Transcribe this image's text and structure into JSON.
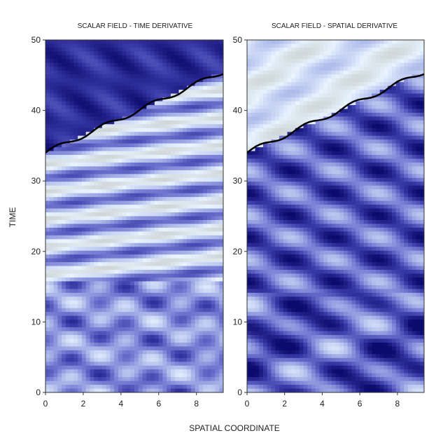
{
  "chart_data": [
    {
      "type": "heatmap",
      "title": "SCALAR FIELD - TIME DERIVATIVE",
      "xlim": [
        0,
        9.42
      ],
      "ylim": [
        0,
        50
      ],
      "x_ticks": [
        "0",
        "2",
        "4",
        "6",
        "8"
      ],
      "y_ticks": [
        "0",
        "10",
        "20",
        "30",
        "40",
        "50"
      ],
      "boundary_front": {
        "x": [
          0,
          9.42
        ],
        "t": [
          34,
          45.5
        ]
      },
      "colormap": [
        "#0b0b6e",
        "#3a3aa8",
        "#7a80d6",
        "#b8c4ee",
        "#e8f4ff",
        "#cfd6d8"
      ]
    },
    {
      "type": "heatmap",
      "title": "SCALAR FIELD - SPATIAL DERIVATIVE",
      "xlim": [
        0,
        9.42
      ],
      "ylim": [
        0,
        50
      ],
      "x_ticks": [
        "0",
        "2",
        "4",
        "6",
        "8"
      ],
      "y_ticks": [
        "0",
        "10",
        "20",
        "30",
        "40",
        "50"
      ],
      "boundary_front": {
        "x": [
          0,
          9.42
        ],
        "t": [
          34,
          45.5
        ]
      },
      "colormap": [
        "#0b0b6e",
        "#3a3aa8",
        "#7a80d6",
        "#b8c4ee",
        "#e8f4ff",
        "#cfd6d8"
      ]
    }
  ],
  "axes": {
    "xlabel": "SPATIAL COORDINATE",
    "ylabel": "TIME"
  }
}
